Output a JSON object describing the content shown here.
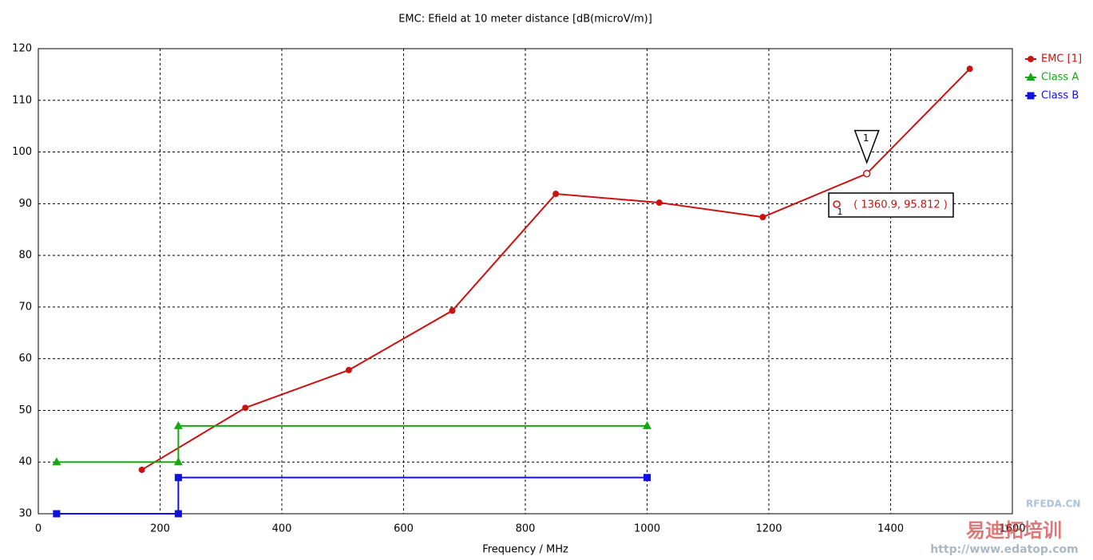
{
  "chart_data": {
    "type": "line",
    "title": "EMC: Efield at 10 meter distance [dB(microV/m)]",
    "x_label": "Frequency / MHz",
    "xlim": [
      0,
      1600
    ],
    "xticks": [
      0,
      200,
      400,
      600,
      800,
      1000,
      1200,
      1400,
      1600
    ],
    "ylim": [
      30,
      120
    ],
    "yticks": [
      30,
      40,
      50,
      60,
      70,
      80,
      90,
      100,
      110,
      120
    ],
    "grid": true,
    "legend": "right",
    "series": [
      {
        "name": "EMC [1]",
        "color": "#cc1111",
        "marker": "circle",
        "x": [
          170,
          340,
          510,
          680,
          850,
          1020,
          1190,
          1360.9,
          1530
        ],
        "values": [
          38.5,
          50.5,
          57.8,
          69.3,
          91.9,
          90.2,
          87.4,
          95.812,
          116.1
        ]
      },
      {
        "name": "Class A",
        "color": "#11aa11",
        "marker": "triangle",
        "x": [
          30,
          230,
          230,
          1000
        ],
        "values": [
          40,
          40,
          47,
          47
        ]
      },
      {
        "name": "Class B",
        "color": "#1111dd",
        "marker": "square",
        "x": [
          30,
          230,
          230,
          1000
        ],
        "values": [
          30,
          30,
          37,
          37
        ]
      }
    ],
    "markers": [
      {
        "label": "1",
        "x": 1360.9,
        "y": 95.812,
        "readout": "( 1360.9, 95.812 )"
      }
    ],
    "watermark": [
      "RFEDA.CN",
      "易迪拓培训",
      "http://www.edatop.com"
    ]
  }
}
